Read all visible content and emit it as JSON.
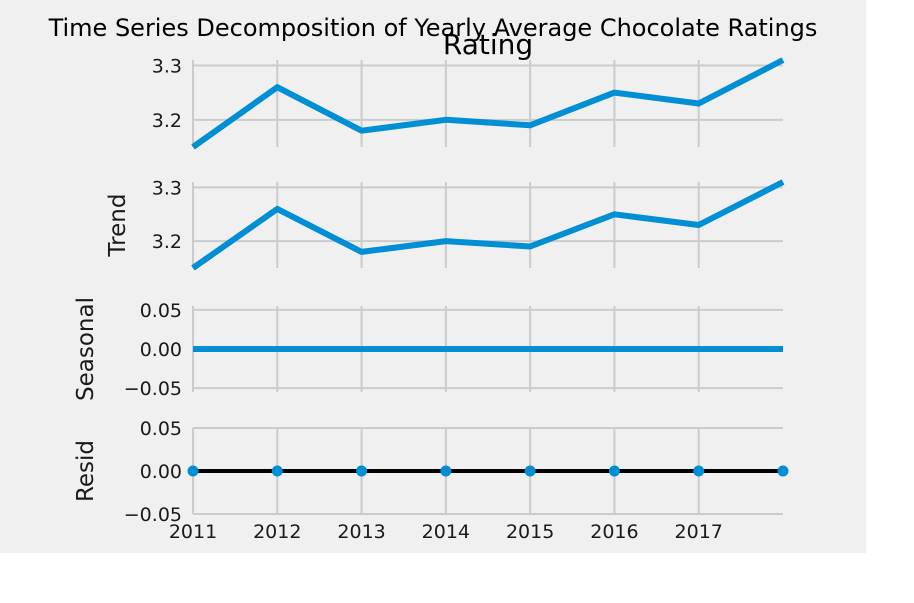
{
  "figure": {
    "suptitle": "Time Series Decomposition of Yearly Average Chocolate Ratings",
    "background": "#f0f0f0",
    "line_color": "#008fd5",
    "grid_color": "#cbcbcb"
  },
  "chart_data": [
    {
      "type": "line",
      "title": "Rating",
      "ylabel": "",
      "x": [
        2011,
        2012,
        2013,
        2014,
        2015,
        2016,
        2017,
        2018
      ],
      "values": [
        3.15,
        3.26,
        3.18,
        3.2,
        3.19,
        3.25,
        3.23,
        3.31
      ],
      "ylim": [
        3.15,
        3.31
      ],
      "yticks": [
        3.2,
        3.3
      ],
      "ytick_labels": [
        "3.2",
        "3.3"
      ],
      "grid": true
    },
    {
      "type": "line",
      "title": "",
      "ylabel": "Trend",
      "x": [
        2011,
        2012,
        2013,
        2014,
        2015,
        2016,
        2017,
        2018
      ],
      "values": [
        3.15,
        3.26,
        3.18,
        3.2,
        3.19,
        3.25,
        3.23,
        3.31
      ],
      "ylim": [
        3.15,
        3.31
      ],
      "yticks": [
        3.2,
        3.3
      ],
      "ytick_labels": [
        "3.2",
        "3.3"
      ],
      "grid": true
    },
    {
      "type": "line",
      "title": "",
      "ylabel": "Seasonal",
      "x": [
        2011,
        2012,
        2013,
        2014,
        2015,
        2016,
        2017,
        2018
      ],
      "values": [
        0,
        0,
        0,
        0,
        0,
        0,
        0,
        0
      ],
      "ylim": [
        -0.055,
        0.055
      ],
      "yticks": [
        -0.05,
        0.0,
        0.05
      ],
      "ytick_labels": [
        "−0.05",
        "0.00",
        "0.05"
      ],
      "grid": true
    },
    {
      "type": "scatter",
      "title": "",
      "ylabel": "Resid",
      "x": [
        2011,
        2012,
        2013,
        2014,
        2015,
        2016,
        2017,
        2018
      ],
      "values": [
        0,
        0,
        0,
        0,
        0,
        0,
        0,
        0
      ],
      "ylim": [
        -0.05,
        0.05
      ],
      "yticks": [
        -0.05,
        0.0,
        0.05
      ],
      "ytick_labels": [
        "−0.05",
        "0.00",
        "0.05"
      ],
      "zero_line": true,
      "grid": true
    }
  ],
  "x_axis": {
    "xlim": [
      2011,
      2018
    ],
    "ticks": [
      2011,
      2012,
      2013,
      2014,
      2015,
      2016,
      2017
    ],
    "tick_labels": [
      "2011",
      "2012",
      "2013",
      "2014",
      "2015",
      "2016",
      "2017"
    ]
  }
}
